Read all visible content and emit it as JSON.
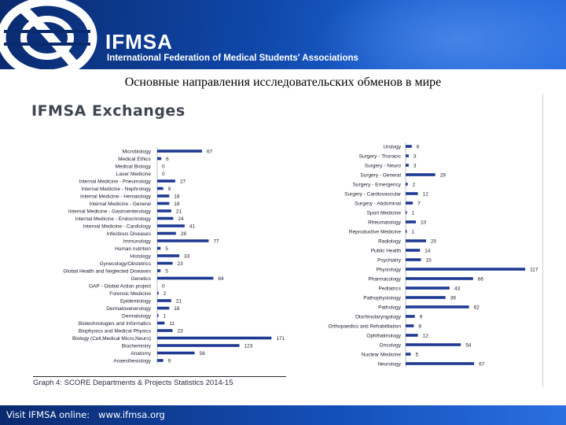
{
  "header": {
    "brand": "IFMSA",
    "tagline": "International Federation of Medical Students' Associations"
  },
  "subtitle": "Основные направления исследовательских обменов в мире",
  "chart_data": [
    {
      "type": "bar",
      "orientation": "horizontal",
      "title": "IFMSA Exchanges",
      "caption": "Graph 4: SCORE Departments & Projects Statistics 2014-15",
      "categories": [
        "Microbiology",
        "Medical Ethics",
        "Medical Biology",
        "Laser Medicine",
        "Internal Medicine - Pneumology",
        "Internal Medicine - Nephrology",
        "Internal Medicine - Hematology",
        "Internal Medicine - General",
        "Internal Medicine - Gastroenterology",
        "Internal Medicine - Endocrinology",
        "Internal Medicine - Cardiology",
        "Infectious Diseases",
        "Immunology",
        "Human nutrition",
        "Histology",
        "Gynecology/Obstetrics",
        "Global Health and Neglected Diseases",
        "Genetics",
        "GAP - Global Action project",
        "Forensic Medicine",
        "Epidemiology",
        "Dermatovenerology",
        "Dermatology",
        "Biotechnologies and Informatics",
        "Biophysics and Medical Physics",
        "Biology (Cell,Medical Micro,Neuro)",
        "Biochemistry",
        "Anatomy",
        "Anaesthesiology"
      ],
      "values": [
        67,
        6,
        0,
        0,
        27,
        9,
        18,
        18,
        21,
        24,
        41,
        28,
        77,
        5,
        33,
        23,
        5,
        84,
        0,
        2,
        21,
        18,
        1,
        11,
        23,
        171,
        123,
        56,
        9
      ],
      "value_labels": [
        "67",
        "6",
        "0",
        "0",
        "27",
        "9",
        "18",
        "18",
        "21",
        "24",
        "41",
        "28",
        "77",
        "5",
        "33",
        "23",
        "5",
        "84",
        "0",
        "2",
        "21",
        "18",
        "1",
        "11",
        "23",
        "171",
        "123",
        "56",
        "9"
      ],
      "color": "#1f3a93"
    },
    {
      "type": "bar",
      "orientation": "horizontal",
      "categories": [
        "Urology",
        "Surgery - Thoracic",
        "Surgery - Neuro",
        "Surgery - General",
        "Surgery - Emergency",
        "Surgery - Cardiovascular",
        "Surgery - Abdominal",
        "Sport Medicine",
        "Rheumatology",
        "Reproductive Medicine",
        "Radiology",
        "Public Health",
        "Psychiatry",
        "Physiology",
        "Pharmacology",
        "Pediatrics",
        "Pathophysiology",
        "Pathology",
        "Otorhinolaryngology",
        "Orthopaedics and Rehabilitation",
        "Ophthalmology",
        "Oncology",
        "Nuclear Medicine",
        "Neurology"
      ],
      "values": [
        6,
        3,
        3,
        29,
        2,
        12,
        7,
        1,
        10,
        1,
        20,
        14,
        15,
        117,
        66,
        43,
        39,
        62,
        9,
        8,
        12,
        54,
        5,
        67
      ],
      "value_labels": [
        "6",
        "3",
        "3",
        "29",
        "2",
        "12",
        "7",
        "1",
        "10",
        "1",
        "20",
        "14",
        "15",
        "117",
        "66",
        "43",
        "39",
        "62",
        "9",
        "8",
        "12",
        "54",
        "5",
        "67"
      ],
      "color": "#1f3a93"
    }
  ],
  "footer": {
    "text": "Visit IFMSA online:   www.ifmsa.org"
  }
}
